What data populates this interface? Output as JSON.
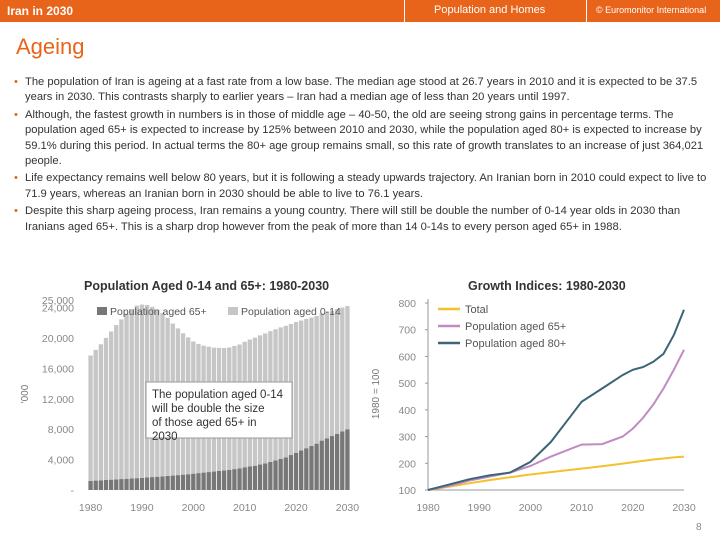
{
  "header": {
    "section": "Iran in 2030",
    "topic": "Population and  Homes",
    "copyright": "© Euromonitor International"
  },
  "slide": {
    "title": "Ageing",
    "page_number": "8"
  },
  "bullets": [
    "The population of Iran is ageing at a fast rate from a low base. The median age stood at 26.7 years in 2010 and it is expected to be 37.5 years in 2030. This contrasts sharply to earlier years – Iran had a median age of less than 20 years until 1997.",
    "Although, the fastest growth in numbers is in those of middle age – 40-50, the old are seeing strong gains in percentage terms. The population aged 65+ is expected to increase by 125% between 2010 and 2030, while the population aged 80+ is expected to increase by 59.1% during this period. In actual terms the 80+ age group remains small, so this rate of growth translates to an increase of just 364,021 people.",
    "Life expectancy remains well below 80 years, but it is following a steady upwards trajectory. An Iranian born in 2010 could expect to live to 71.9 years, whereas an Iranian born in 2030 should be able to live to 76.1 years.",
    "Despite this sharp ageing process, Iran remains a young country. There will still be double the number of 0-14 year olds in 2030 than Iranians aged 65+. This is a sharp drop however from the peak of more than 14 0-14s to every person aged 65+ in 1988."
  ],
  "colors": {
    "accent": "#e8641b",
    "pop65": "#777777",
    "pop014": "#c6c6c6",
    "total": "#f2c12e",
    "aged65": "#c08ac2",
    "aged80": "#3d6478"
  },
  "chart_data": [
    {
      "type": "bar",
      "title": "Population Aged 0-14 and 65+: 1980-2030",
      "ylabel": "'000",
      "ylim": [
        0,
        25000
      ],
      "yticks": [
        "25,000",
        "24,000",
        "20,000",
        "16,000",
        "12,000",
        "8,000",
        "4,000",
        "-"
      ],
      "ytick_values": [
        25000,
        24000,
        20000,
        16000,
        12000,
        8000,
        4000,
        0
      ],
      "xticks": [
        "1980",
        "1990",
        "2000",
        "2010",
        "2020",
        "2030"
      ],
      "annotation": "The population aged 0-14 will be double the size of those aged 65+ in 2030",
      "x": [
        1980,
        1981,
        1982,
        1983,
        1984,
        1985,
        1986,
        1987,
        1988,
        1989,
        1990,
        1991,
        1992,
        1993,
        1994,
        1995,
        1996,
        1997,
        1998,
        1999,
        2000,
        2001,
        2002,
        2003,
        2004,
        2005,
        2006,
        2007,
        2008,
        2009,
        2010,
        2011,
        2012,
        2013,
        2014,
        2015,
        2016,
        2017,
        2018,
        2019,
        2020,
        2021,
        2022,
        2023,
        2024,
        2025,
        2026,
        2027,
        2028,
        2029,
        2030
      ],
      "series": [
        {
          "name": "Population aged 65+",
          "values": [
            1200,
            1240,
            1280,
            1320,
            1360,
            1400,
            1440,
            1480,
            1520,
            1560,
            1600,
            1650,
            1700,
            1750,
            1800,
            1850,
            1900,
            1960,
            2020,
            2080,
            2150,
            2220,
            2290,
            2360,
            2430,
            2500,
            2580,
            2660,
            2750,
            2840,
            3000,
            3100,
            3200,
            3350,
            3500,
            3700,
            3900,
            4100,
            4300,
            4600,
            4900,
            5200,
            5500,
            5800,
            6100,
            6500,
            6800,
            7100,
            7400,
            7700,
            8000
          ]
        },
        {
          "name": "Population aged 0-14",
          "values": [
            16500,
            17200,
            17900,
            18700,
            19500,
            20300,
            21000,
            21700,
            22300,
            22700,
            22800,
            22700,
            22400,
            22000,
            21500,
            20800,
            20000,
            19300,
            18600,
            18000,
            17400,
            17000,
            16700,
            16500,
            16300,
            16200,
            16100,
            16100,
            16200,
            16300,
            16500,
            16700,
            16850,
            17000,
            17100,
            17200,
            17250,
            17300,
            17300,
            17250,
            17200,
            17100,
            17000,
            16900,
            16800,
            16700,
            16600,
            16500,
            16400,
            16300,
            16200
          ]
        }
      ]
    },
    {
      "type": "line",
      "title": "Growth Indices: 1980-2030",
      "ylabel": "1980 = 100",
      "ylim": [
        100,
        800
      ],
      "yticks": [
        "800",
        "700",
        "600",
        "500",
        "400",
        "300",
        "200",
        "100"
      ],
      "ytick_values": [
        800,
        700,
        600,
        500,
        400,
        300,
        200,
        100
      ],
      "xticks": [
        "1980",
        "1990",
        "2000",
        "2010",
        "2020",
        "2030"
      ],
      "x": [
        1980,
        1984,
        1988,
        1992,
        1996,
        2000,
        2004,
        2008,
        2010,
        2014,
        2018,
        2020,
        2022,
        2024,
        2026,
        2028,
        2030
      ],
      "series": [
        {
          "name": "Total",
          "values": [
            100,
            112,
            125,
            137,
            148,
            158,
            167,
            176,
            180,
            189,
            199,
            204,
            209,
            214,
            218,
            222,
            225
          ]
        },
        {
          "name": "Population aged 65+",
          "values": [
            100,
            115,
            135,
            150,
            165,
            190,
            225,
            255,
            270,
            272,
            300,
            330,
            370,
            420,
            480,
            550,
            625
          ]
        },
        {
          "name": "Population aged 80+",
          "values": [
            100,
            120,
            140,
            155,
            165,
            205,
            280,
            380,
            430,
            480,
            530,
            550,
            560,
            580,
            610,
            680,
            775
          ]
        }
      ]
    }
  ]
}
